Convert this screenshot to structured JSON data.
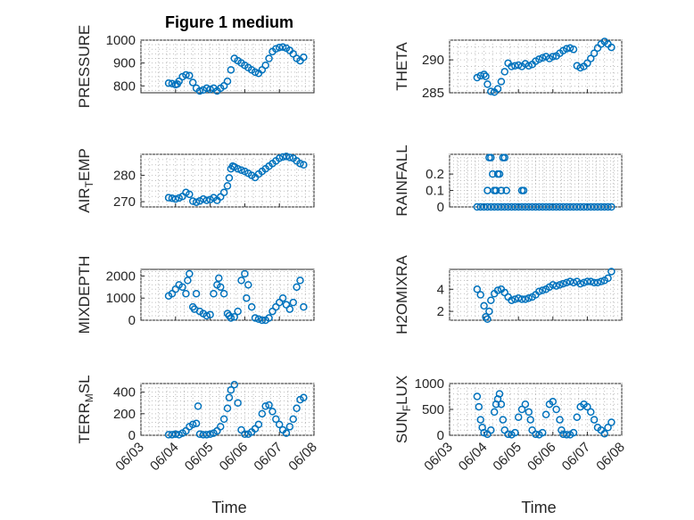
{
  "figure": {
    "title": "Figure 1 medium",
    "x_axis_label": "Time",
    "marker_color": "#0072bd"
  },
  "chart_data": [
    {
      "id": "pressure",
      "type": "scatter",
      "ylabel": "PRESSURE",
      "ylabel_sub": "",
      "ylim": [
        770,
        1000
      ],
      "yticks": [
        800,
        900,
        1000
      ],
      "xlim": [
        0,
        5
      ],
      "xticks": [
        0,
        1,
        2,
        3,
        4,
        5
      ],
      "xtick_labels": [
        "06/03",
        "06/04",
        "06/05",
        "06/06",
        "06/07",
        "06/08"
      ],
      "x": [
        0.8,
        0.9,
        1.0,
        1.05,
        1.1,
        1.2,
        1.3,
        1.4,
        1.5,
        1.6,
        1.7,
        1.8,
        1.9,
        2.0,
        2.1,
        2.2,
        2.3,
        2.4,
        2.5,
        2.6,
        2.7,
        2.8,
        2.9,
        3.0,
        3.1,
        3.2,
        3.3,
        3.4,
        3.5,
        3.6,
        3.7,
        3.8,
        3.9,
        4.0,
        4.1,
        4.2,
        4.3,
        4.4,
        4.5,
        4.6,
        4.7
      ],
      "values": [
        812,
        810,
        805,
        808,
        820,
        840,
        848,
        845,
        815,
        790,
        778,
        782,
        790,
        785,
        790,
        778,
        790,
        800,
        820,
        870,
        920,
        910,
        900,
        890,
        880,
        870,
        860,
        855,
        870,
        890,
        920,
        950,
        962,
        968,
        970,
        965,
        955,
        940,
        920,
        910,
        925
      ]
    },
    {
      "id": "theta",
      "type": "scatter",
      "ylabel": "THETA",
      "ylabel_sub": "",
      "ylim": [
        285,
        293
      ],
      "yticks": [
        285,
        290
      ],
      "xlim": [
        0,
        5
      ],
      "xticks": [
        0,
        1,
        2,
        3,
        4,
        5
      ],
      "xtick_labels": [
        "06/03",
        "06/04",
        "06/05",
        "06/06",
        "06/07",
        "06/08"
      ],
      "x": [
        0.8,
        0.9,
        1.0,
        1.05,
        1.1,
        1.2,
        1.3,
        1.4,
        1.5,
        1.6,
        1.7,
        1.8,
        1.9,
        2.0,
        2.1,
        2.2,
        2.3,
        2.4,
        2.5,
        2.6,
        2.7,
        2.8,
        2.9,
        3.0,
        3.1,
        3.2,
        3.3,
        3.4,
        3.5,
        3.6,
        3.7,
        3.8,
        3.9,
        4.0,
        4.1,
        4.2,
        4.3,
        4.4,
        4.5,
        4.6,
        4.7
      ],
      "values": [
        287.3,
        287.6,
        287.8,
        287.5,
        286.3,
        285.2,
        285.1,
        285.6,
        286.7,
        288.2,
        289.5,
        289.0,
        289.1,
        289.2,
        289.0,
        289.4,
        289.1,
        289.3,
        289.8,
        290.1,
        290.3,
        290.5,
        290.2,
        290.5,
        290.6,
        291.0,
        291.4,
        291.7,
        291.8,
        291.6,
        289.1,
        288.8,
        289.0,
        289.5,
        290.2,
        291.0,
        291.8,
        292.4,
        292.8,
        292.4,
        291.9
      ]
    },
    {
      "id": "air_temp",
      "type": "scatter",
      "ylabel": "AIR",
      "ylabel_sub": "T",
      "ylabel_suffix": "EMP",
      "ylim": [
        268,
        288
      ],
      "yticks": [
        270,
        280
      ],
      "xlim": [
        0,
        5
      ],
      "xticks": [
        0,
        1,
        2,
        3,
        4,
        5
      ],
      "xtick_labels": [
        "06/03",
        "06/04",
        "06/05",
        "06/06",
        "06/07",
        "06/08"
      ],
      "x": [
        0.8,
        0.9,
        1.0,
        1.1,
        1.2,
        1.3,
        1.4,
        1.5,
        1.6,
        1.7,
        1.8,
        1.9,
        2.0,
        2.1,
        2.2,
        2.3,
        2.4,
        2.5,
        2.55,
        2.6,
        2.65,
        2.7,
        2.8,
        2.9,
        3.0,
        3.1,
        3.2,
        3.3,
        3.4,
        3.5,
        3.6,
        3.7,
        3.8,
        3.9,
        4.0,
        4.1,
        4.2,
        4.3,
        4.4,
        4.5,
        4.6,
        4.7
      ],
      "values": [
        271.5,
        271.3,
        271.0,
        271.4,
        272.0,
        273.5,
        272.8,
        270.2,
        269.8,
        270.3,
        271.0,
        270.5,
        270.8,
        271.5,
        270.5,
        271.8,
        273.5,
        276.0,
        279.0,
        282.5,
        283.5,
        283.2,
        282.5,
        282.0,
        281.5,
        280.8,
        280.0,
        279.2,
        280.5,
        281.5,
        282.5,
        283.5,
        284.5,
        285.5,
        286.5,
        287.0,
        287.2,
        286.8,
        286.5,
        285.5,
        284.5,
        284.0
      ]
    },
    {
      "id": "rainfall",
      "type": "scatter",
      "ylabel": "RAINFALL",
      "ylabel_sub": "",
      "ylim": [
        0,
        0.32
      ],
      "yticks": [
        0,
        0.1,
        0.2
      ],
      "xlim": [
        0,
        5
      ],
      "xticks": [
        0,
        1,
        2,
        3,
        4,
        5
      ],
      "xtick_labels": [
        "06/03",
        "06/04",
        "06/05",
        "06/06",
        "06/07",
        "06/08"
      ],
      "x": [
        0.8,
        0.9,
        1.0,
        1.1,
        1.2,
        1.3,
        1.4,
        1.5,
        1.6,
        1.7,
        1.8,
        1.9,
        2.0,
        2.1,
        2.2,
        2.3,
        2.4,
        2.5,
        2.6,
        2.7,
        2.8,
        2.9,
        3.0,
        3.1,
        3.2,
        3.3,
        3.4,
        3.5,
        3.6,
        3.7,
        3.8,
        3.9,
        4.0,
        4.1,
        4.2,
        4.3,
        4.4,
        4.5,
        4.6,
        4.7,
        1.1,
        1.15,
        1.2,
        1.25,
        1.3,
        1.35,
        1.4,
        1.45,
        1.5,
        1.55,
        1.6,
        1.65,
        2.1,
        2.15
      ],
      "values": [
        0,
        0,
        0,
        0,
        0,
        0,
        0,
        0,
        0,
        0,
        0,
        0,
        0,
        0,
        0,
        0,
        0,
        0,
        0,
        0,
        0,
        0,
        0,
        0,
        0,
        0,
        0,
        0,
        0,
        0,
        0,
        0,
        0,
        0,
        0,
        0,
        0,
        0,
        0,
        0,
        0.1,
        0.3,
        0.3,
        0.2,
        0.1,
        0.1,
        0.2,
        0.2,
        0.1,
        0.3,
        0.3,
        0.1,
        0.1,
        0.1
      ]
    },
    {
      "id": "mixdepth",
      "type": "scatter",
      "ylabel": "MIXDEPTH",
      "ylabel_sub": "",
      "ylim": [
        0,
        2300
      ],
      "yticks": [
        0,
        1000,
        2000
      ],
      "xlim": [
        0,
        5
      ],
      "xticks": [
        0,
        1,
        2,
        3,
        4,
        5
      ],
      "xtick_labels": [
        "06/03",
        "06/04",
        "06/05",
        "06/06",
        "06/07",
        "06/08"
      ],
      "x": [
        0.8,
        0.9,
        1.0,
        1.1,
        1.2,
        1.3,
        1.35,
        1.4,
        1.5,
        1.55,
        1.6,
        1.7,
        1.8,
        1.9,
        2.0,
        2.1,
        2.2,
        2.25,
        2.3,
        2.4,
        2.5,
        2.55,
        2.6,
        2.7,
        2.8,
        2.9,
        3.0,
        3.05,
        3.1,
        3.2,
        3.3,
        3.4,
        3.5,
        3.6,
        3.7,
        3.8,
        3.9,
        4.0,
        4.1,
        4.2,
        4.3,
        4.4,
        4.5,
        4.6,
        4.7
      ],
      "values": [
        1100,
        1200,
        1400,
        1600,
        1500,
        1200,
        1800,
        2100,
        600,
        500,
        1200,
        400,
        300,
        200,
        250,
        1200,
        1600,
        1900,
        1500,
        1200,
        300,
        200,
        100,
        150,
        400,
        1800,
        2100,
        1000,
        1600,
        600,
        100,
        50,
        0,
        0,
        100,
        400,
        600,
        800,
        1000,
        700,
        500,
        800,
        1500,
        1800,
        600
      ]
    },
    {
      "id": "h2omixra",
      "type": "scatter",
      "ylabel": "H2OMIXRA",
      "ylabel_sub": "",
      "ylim": [
        1.2,
        5.8
      ],
      "yticks": [
        2,
        4
      ],
      "xlim": [
        0,
        5
      ],
      "xticks": [
        0,
        1,
        2,
        3,
        4,
        5
      ],
      "xtick_labels": [
        "06/03",
        "06/04",
        "06/05",
        "06/06",
        "06/07",
        "06/08"
      ],
      "x": [
        0.8,
        0.9,
        1.0,
        1.05,
        1.1,
        1.15,
        1.2,
        1.3,
        1.4,
        1.5,
        1.6,
        1.7,
        1.8,
        1.9,
        2.0,
        2.1,
        2.2,
        2.3,
        2.4,
        2.5,
        2.6,
        2.7,
        2.8,
        2.9,
        3.0,
        3.1,
        3.2,
        3.3,
        3.4,
        3.5,
        3.6,
        3.7,
        3.8,
        3.9,
        4.0,
        4.1,
        4.2,
        4.3,
        4.4,
        4.5,
        4.6,
        4.7
      ],
      "values": [
        4.0,
        3.5,
        2.5,
        1.5,
        1.3,
        2.0,
        3.0,
        3.6,
        3.9,
        4.0,
        3.7,
        3.3,
        3.0,
        3.1,
        3.2,
        3.1,
        3.1,
        3.2,
        3.3,
        3.5,
        3.8,
        3.9,
        4.0,
        4.2,
        4.4,
        4.3,
        4.4,
        4.5,
        4.6,
        4.7,
        4.6,
        4.7,
        4.5,
        4.6,
        4.7,
        4.7,
        4.6,
        4.6,
        4.7,
        4.8,
        5.0,
        5.6
      ]
    },
    {
      "id": "terr_msl",
      "type": "scatter",
      "ylabel": "TERR",
      "ylabel_sub": "M",
      "ylabel_suffix": "SL",
      "ylim": [
        0,
        480
      ],
      "yticks": [
        0,
        200,
        400
      ],
      "xlim": [
        0,
        5
      ],
      "xticks": [
        0,
        1,
        2,
        3,
        4,
        5
      ],
      "xtick_labels": [
        "06/03",
        "06/04",
        "06/05",
        "06/06",
        "06/07",
        "06/08"
      ],
      "x": [
        0.8,
        0.9,
        1.0,
        1.1,
        1.2,
        1.3,
        1.4,
        1.5,
        1.6,
        1.65,
        1.7,
        1.8,
        1.9,
        2.0,
        2.1,
        2.2,
        2.3,
        2.4,
        2.5,
        2.55,
        2.6,
        2.7,
        2.8,
        2.9,
        3.0,
        3.1,
        3.2,
        3.3,
        3.4,
        3.5,
        3.6,
        3.7,
        3.8,
        3.9,
        4.0,
        4.1,
        4.2,
        4.3,
        4.4,
        4.5,
        4.6,
        4.7
      ],
      "values": [
        5,
        5,
        10,
        5,
        20,
        40,
        80,
        100,
        110,
        270,
        10,
        5,
        5,
        10,
        20,
        40,
        80,
        150,
        250,
        350,
        420,
        470,
        300,
        50,
        10,
        10,
        30,
        60,
        100,
        200,
        270,
        280,
        220,
        150,
        100,
        50,
        20,
        80,
        150,
        250,
        330,
        350
      ]
    },
    {
      "id": "sun_flux",
      "type": "scatter",
      "ylabel": "SUN",
      "ylabel_sub": "F",
      "ylabel_suffix": "LUX",
      "ylim": [
        0,
        1000
      ],
      "yticks": [
        0,
        500,
        1000
      ],
      "xlim": [
        0,
        5
      ],
      "xticks": [
        0,
        1,
        2,
        3,
        4,
        5
      ],
      "xtick_labels": [
        "06/03",
        "06/04",
        "06/05",
        "06/06",
        "06/07",
        "06/08"
      ],
      "x": [
        0.8,
        0.85,
        0.9,
        0.95,
        1.0,
        1.1,
        1.2,
        1.3,
        1.35,
        1.4,
        1.45,
        1.5,
        1.55,
        1.6,
        1.7,
        1.8,
        1.9,
        2.0,
        2.1,
        2.2,
        2.3,
        2.35,
        2.4,
        2.5,
        2.6,
        2.7,
        2.8,
        2.9,
        3.0,
        3.1,
        3.2,
        3.25,
        3.3,
        3.4,
        3.5,
        3.6,
        3.7,
        3.8,
        3.9,
        4.0,
        4.1,
        4.2,
        4.3,
        4.4,
        4.5,
        4.6,
        4.7
      ],
      "values": [
        750,
        550,
        300,
        150,
        50,
        20,
        100,
        450,
        600,
        700,
        800,
        600,
        300,
        100,
        20,
        10,
        50,
        350,
        500,
        600,
        450,
        300,
        100,
        20,
        10,
        50,
        400,
        600,
        650,
        500,
        300,
        100,
        20,
        10,
        10,
        50,
        350,
        550,
        600,
        550,
        450,
        300,
        150,
        100,
        30,
        150,
        250
      ]
    }
  ]
}
